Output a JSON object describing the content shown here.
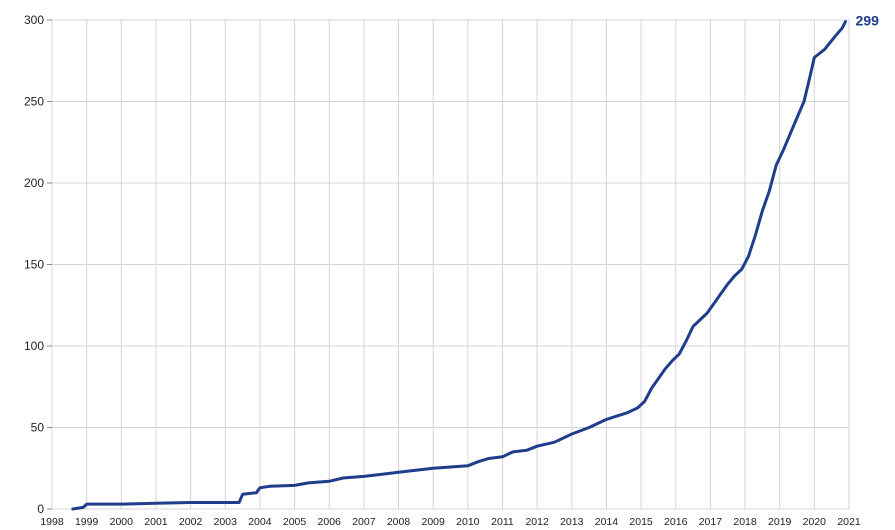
{
  "chart_data": {
    "type": "line",
    "title": "",
    "xlabel": "",
    "ylabel": "",
    "xlim": [
      1998,
      2021
    ],
    "ylim": [
      0,
      300
    ],
    "yticks": [
      0,
      50,
      100,
      150,
      200,
      250,
      300
    ],
    "xtick_labels": [
      "1998",
      "1999",
      "2000",
      "2001",
      "2002",
      "2003",
      "2004",
      "2005",
      "2006",
      "2007",
      "2008",
      "2009",
      "2010",
      "2011",
      "2012",
      "2013",
      "2014",
      "2015",
      "2016",
      "2017",
      "2018",
      "2019",
      "2020",
      "2021"
    ],
    "grid": true,
    "legend": "none",
    "line_color": "#1f3d8c",
    "end_label": "299",
    "series": [
      {
        "points": [
          [
            1998.6,
            0
          ],
          [
            1998.9,
            1
          ],
          [
            1999.0,
            3
          ],
          [
            2000.0,
            3
          ],
          [
            2001.0,
            3.5
          ],
          [
            2002.0,
            4
          ],
          [
            2003.4,
            4
          ],
          [
            2003.5,
            9
          ],
          [
            2003.9,
            10
          ],
          [
            2004.0,
            13
          ],
          [
            2004.3,
            14
          ],
          [
            2005.0,
            14.5
          ],
          [
            2005.4,
            16
          ],
          [
            2006.0,
            17
          ],
          [
            2006.4,
            19
          ],
          [
            2007.0,
            20
          ],
          [
            2007.4,
            21
          ],
          [
            2008.0,
            22.5
          ],
          [
            2009.0,
            25
          ],
          [
            2010.0,
            26.5
          ],
          [
            2010.3,
            29
          ],
          [
            2010.6,
            31
          ],
          [
            2011.0,
            32
          ],
          [
            2011.3,
            35
          ],
          [
            2011.7,
            36
          ],
          [
            2012.0,
            38.5
          ],
          [
            2012.5,
            41
          ],
          [
            2013.0,
            46
          ],
          [
            2013.5,
            50
          ],
          [
            2014.0,
            55
          ],
          [
            2014.3,
            57
          ],
          [
            2014.6,
            59
          ],
          [
            2014.9,
            62
          ],
          [
            2015.1,
            66
          ],
          [
            2015.3,
            74
          ],
          [
            2015.5,
            80
          ],
          [
            2015.7,
            86
          ],
          [
            2015.9,
            91
          ],
          [
            2016.1,
            95
          ],
          [
            2016.3,
            103
          ],
          [
            2016.5,
            112
          ],
          [
            2016.7,
            116
          ],
          [
            2016.9,
            120
          ],
          [
            2017.1,
            126
          ],
          [
            2017.3,
            132
          ],
          [
            2017.5,
            138
          ],
          [
            2017.7,
            143
          ],
          [
            2017.9,
            147
          ],
          [
            2018.1,
            155
          ],
          [
            2018.3,
            168
          ],
          [
            2018.5,
            183
          ],
          [
            2018.7,
            195
          ],
          [
            2018.9,
            211
          ],
          [
            2019.1,
            220
          ],
          [
            2019.3,
            230
          ],
          [
            2019.5,
            240
          ],
          [
            2019.7,
            250
          ],
          [
            2019.85,
            263
          ],
          [
            2020.0,
            277
          ],
          [
            2020.3,
            282
          ],
          [
            2020.6,
            290
          ],
          [
            2020.8,
            295
          ],
          [
            2020.9,
            299
          ]
        ]
      }
    ]
  }
}
